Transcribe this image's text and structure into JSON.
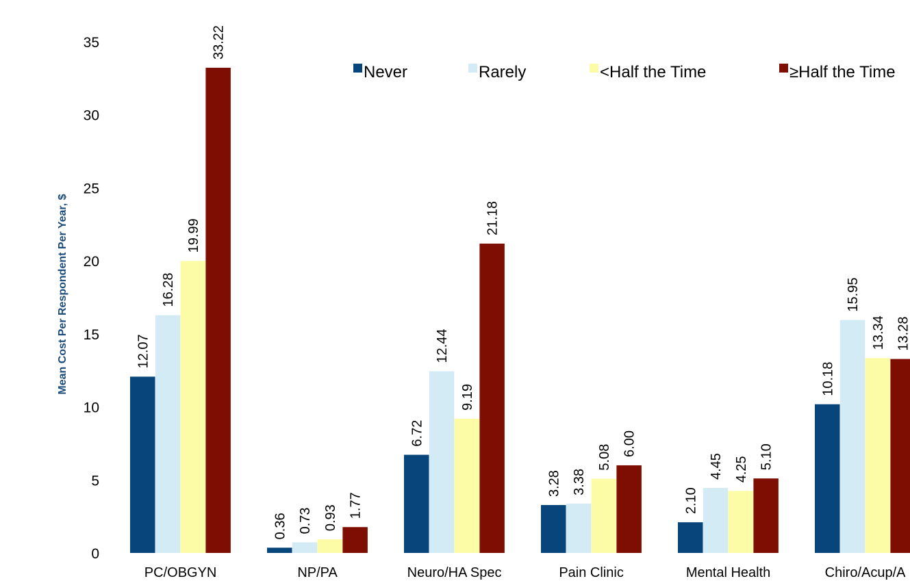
{
  "chart_data": {
    "type": "bar",
    "title": "",
    "ylabel": "Mean Cost Per Respondent Per Year, $",
    "xlabel": "",
    "ylim": [
      0,
      35
    ],
    "yticks": [
      0,
      5,
      10,
      15,
      20,
      25,
      30,
      35
    ],
    "grid": false,
    "legend_position": "top",
    "categories": [
      "PC/OBGYN",
      "NP/PA",
      "Neuro/HA Spec",
      "Pain Clinic",
      "Mental Health",
      "Chiro/Acup/A"
    ],
    "series": [
      {
        "name": "Never",
        "color": "#07457b",
        "values": [
          12.07,
          0.36,
          6.72,
          3.28,
          2.1,
          10.18
        ],
        "labels": [
          "12.07",
          "0.36",
          "6.72",
          "3.28",
          "2.10",
          "10.18"
        ]
      },
      {
        "name": "Rarely",
        "color": "#d3ebf4",
        "values": [
          16.28,
          0.73,
          12.44,
          3.38,
          4.45,
          15.95
        ],
        "labels": [
          "16.28",
          "0.73",
          "12.44",
          "3.38",
          "4.45",
          "15.95"
        ]
      },
      {
        "name": "<Half the Time",
        "color": "#fdfca6",
        "values": [
          19.99,
          0.93,
          9.19,
          5.08,
          4.25,
          13.34
        ],
        "labels": [
          "19.99",
          "0.93",
          "9.19",
          "5.08",
          "4.25",
          "13.34"
        ]
      },
      {
        "name": "≥Half the Time",
        "color": "#7d0e01",
        "values": [
          33.22,
          1.77,
          21.18,
          6.0,
          5.1,
          13.28
        ],
        "labels": [
          "33.22",
          "1.77",
          "21.18",
          "6.00",
          "5.10",
          "13.28"
        ]
      }
    ]
  }
}
